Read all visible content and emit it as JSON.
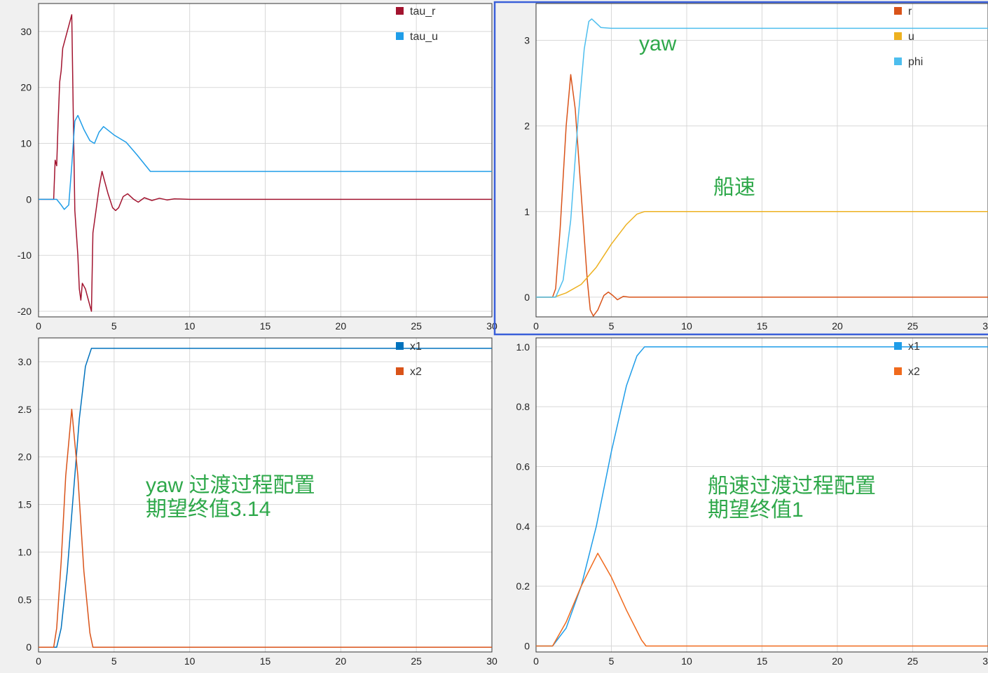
{
  "chart_data": [
    {
      "type": "line",
      "panel": "top-left",
      "xlim": [
        0,
        30
      ],
      "ylim": [
        -21,
        35
      ],
      "xticks": [
        0,
        5,
        10,
        15,
        20,
        25,
        30
      ],
      "yticks": [
        -20,
        -10,
        0,
        10,
        20,
        30
      ],
      "grid": true,
      "legend_position": "top-right",
      "series": [
        {
          "name": "tau_r",
          "color": "#a2142f",
          "points": [
            [
              0,
              0
            ],
            [
              1.0,
              0
            ],
            [
              1.1,
              7
            ],
            [
              1.2,
              6
            ],
            [
              1.3,
              14
            ],
            [
              1.4,
              21
            ],
            [
              1.5,
              23
            ],
            [
              1.6,
              27
            ],
            [
              1.8,
              29
            ],
            [
              2.0,
              31
            ],
            [
              2.2,
              33
            ],
            [
              2.3,
              15
            ],
            [
              2.4,
              -2
            ],
            [
              2.6,
              -10
            ],
            [
              2.7,
              -16
            ],
            [
              2.8,
              -18
            ],
            [
              2.9,
              -15
            ],
            [
              3.1,
              -16
            ],
            [
              3.2,
              -17
            ],
            [
              3.4,
              -19
            ],
            [
              3.5,
              -20
            ],
            [
              3.6,
              -6
            ],
            [
              3.8,
              -2
            ],
            [
              4.0,
              2
            ],
            [
              4.2,
              5
            ],
            [
              4.3,
              4
            ],
            [
              4.6,
              1
            ],
            [
              4.9,
              -1.5
            ],
            [
              5.1,
              -2
            ],
            [
              5.3,
              -1.5
            ],
            [
              5.6,
              0.5
            ],
            [
              5.9,
              1
            ],
            [
              6.3,
              0
            ],
            [
              6.6,
              -0.5
            ],
            [
              7.0,
              0.3
            ],
            [
              7.5,
              -0.2
            ],
            [
              8.0,
              0.2
            ],
            [
              8.5,
              -0.1
            ],
            [
              9.0,
              0.1
            ],
            [
              10,
              0
            ],
            [
              30,
              0
            ]
          ]
        },
        {
          "name": "tau_u",
          "color": "#1f9de8",
          "points": [
            [
              0,
              0
            ],
            [
              1.2,
              0
            ],
            [
              1.5,
              -1
            ],
            [
              1.7,
              -1.8
            ],
            [
              2.0,
              -1
            ],
            [
              2.2,
              6
            ],
            [
              2.4,
              14
            ],
            [
              2.6,
              15
            ],
            [
              3.0,
              12.5
            ],
            [
              3.4,
              10.5
            ],
            [
              3.7,
              10
            ],
            [
              4.0,
              12
            ],
            [
              4.3,
              13
            ],
            [
              5.0,
              11.5
            ],
            [
              5.8,
              10.2
            ],
            [
              6.5,
              8
            ],
            [
              7.4,
              5
            ],
            [
              30,
              5
            ]
          ]
        }
      ]
    },
    {
      "type": "line",
      "panel": "top-right",
      "xlim": [
        0,
        30
      ],
      "ylim": [
        -0.23,
        3.43
      ],
      "xticks": [
        0,
        5,
        10,
        15,
        20,
        25,
        30
      ],
      "yticks": [
        0,
        1,
        2,
        3
      ],
      "grid": true,
      "legend_position": "top-right",
      "series": [
        {
          "name": "r",
          "color": "#d95319",
          "points": [
            [
              0,
              0
            ],
            [
              1.1,
              0
            ],
            [
              1.3,
              0.1
            ],
            [
              1.6,
              0.8
            ],
            [
              2.0,
              2.0
            ],
            [
              2.3,
              2.6
            ],
            [
              2.6,
              2.2
            ],
            [
              3.0,
              1.2
            ],
            [
              3.4,
              0.2
            ],
            [
              3.6,
              -0.15
            ],
            [
              3.8,
              -0.22
            ],
            [
              4.1,
              -0.15
            ],
            [
              4.5,
              0.02
            ],
            [
              4.8,
              0.06
            ],
            [
              5.1,
              0.02
            ],
            [
              5.4,
              -0.03
            ],
            [
              5.8,
              0.01
            ],
            [
              6.2,
              0
            ],
            [
              30,
              0
            ]
          ]
        },
        {
          "name": "u",
          "color": "#edb120",
          "points": [
            [
              0,
              0
            ],
            [
              1.2,
              0
            ],
            [
              2.0,
              0.05
            ],
            [
              3.0,
              0.15
            ],
            [
              4.0,
              0.35
            ],
            [
              5.0,
              0.62
            ],
            [
              6.0,
              0.85
            ],
            [
              6.7,
              0.97
            ],
            [
              7.2,
              1.0
            ],
            [
              30,
              1.0
            ]
          ]
        },
        {
          "name": "phi",
          "color": "#4dbeee",
          "points": [
            [
              0,
              0
            ],
            [
              1.3,
              0
            ],
            [
              1.8,
              0.2
            ],
            [
              2.3,
              0.9
            ],
            [
              2.8,
              2.1
            ],
            [
              3.2,
              2.9
            ],
            [
              3.5,
              3.22
            ],
            [
              3.7,
              3.25
            ],
            [
              4.0,
              3.2
            ],
            [
              4.3,
              3.15
            ],
            [
              5.0,
              3.14
            ],
            [
              30,
              3.14
            ]
          ]
        }
      ]
    },
    {
      "type": "line",
      "panel": "bottom-left",
      "xlim": [
        0,
        30
      ],
      "ylim": [
        -0.05,
        3.25
      ],
      "xticks": [
        0,
        5,
        10,
        15,
        20,
        25,
        30
      ],
      "yticks": [
        0,
        0.5,
        1.0,
        1.5,
        2.0,
        2.5,
        3.0
      ],
      "ytick_labels": [
        "0",
        "0.5",
        "1.0",
        "1.5",
        "2.0",
        "2.5",
        "3.0"
      ],
      "grid": true,
      "legend_position": "top-right",
      "series": [
        {
          "name": "x1",
          "color": "#0072bd",
          "points": [
            [
              0,
              0
            ],
            [
              1.2,
              0
            ],
            [
              1.5,
              0.2
            ],
            [
              1.9,
              0.8
            ],
            [
              2.3,
              1.6
            ],
            [
              2.7,
              2.4
            ],
            [
              3.1,
              2.95
            ],
            [
              3.5,
              3.14
            ],
            [
              30,
              3.14
            ]
          ]
        },
        {
          "name": "x2",
          "color": "#d95319",
          "points": [
            [
              0,
              0
            ],
            [
              1.0,
              0
            ],
            [
              1.2,
              0.2
            ],
            [
              1.5,
              0.9
            ],
            [
              1.8,
              1.8
            ],
            [
              2.2,
              2.5
            ],
            [
              2.6,
              1.8
            ],
            [
              3.0,
              0.8
            ],
            [
              3.4,
              0.15
            ],
            [
              3.6,
              0
            ],
            [
              30,
              0
            ]
          ]
        }
      ]
    },
    {
      "type": "line",
      "panel": "bottom-right",
      "xlim": [
        0,
        30
      ],
      "ylim": [
        -0.02,
        1.03
      ],
      "xticks": [
        0,
        5,
        10,
        15,
        20,
        25,
        30
      ],
      "yticks": [
        0,
        0.2,
        0.4,
        0.6,
        0.8,
        1.0
      ],
      "ytick_labels": [
        "0",
        "0.2",
        "0.4",
        "0.6",
        "0.8",
        "1.0"
      ],
      "grid": true,
      "legend_position": "top-right",
      "series": [
        {
          "name": "x1",
          "color": "#1f9de8",
          "points": [
            [
              0,
              0
            ],
            [
              1.1,
              0
            ],
            [
              2.0,
              0.06
            ],
            [
              3.0,
              0.2
            ],
            [
              4.0,
              0.4
            ],
            [
              5.0,
              0.65
            ],
            [
              6.0,
              0.87
            ],
            [
              6.7,
              0.97
            ],
            [
              7.2,
              1.0
            ],
            [
              30,
              1.0
            ]
          ]
        },
        {
          "name": "x2",
          "color": "#f06a1d",
          "points": [
            [
              0,
              0
            ],
            [
              1.1,
              0
            ],
            [
              2.0,
              0.08
            ],
            [
              3.0,
              0.2
            ],
            [
              4.1,
              0.31
            ],
            [
              5.0,
              0.23
            ],
            [
              6.0,
              0.12
            ],
            [
              7.0,
              0.02
            ],
            [
              7.3,
              0
            ],
            [
              30,
              0
            ]
          ]
        }
      ]
    }
  ],
  "annotations": [
    {
      "text": "yaw",
      "panel": "top-right"
    },
    {
      "text": "船速",
      "panel": "top-right"
    },
    {
      "lines": [
        "yaw 过渡过程配置",
        "期望终值3.14"
      ],
      "panel": "bottom-left"
    },
    {
      "lines": [
        "船速过渡过程配置",
        "期望终值1"
      ],
      "panel": "bottom-right"
    }
  ],
  "style": {
    "grid_color": "#d8d8d8",
    "annotation_color": "#2ea84a",
    "selected_border_color": "#3a5fd9"
  }
}
